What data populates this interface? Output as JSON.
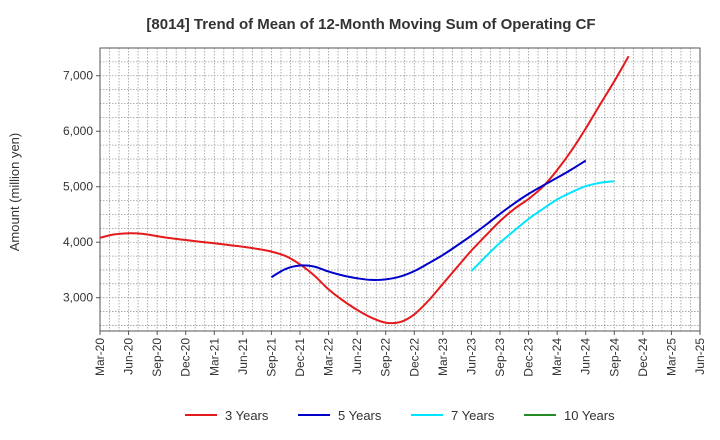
{
  "chart_data": {
    "type": "line",
    "title": "[8014]  Trend of Mean of 12-Month Moving Sum of Operating CF",
    "xlabel": "",
    "ylabel": "Amount (million yen)",
    "ylim": [
      2400,
      7500
    ],
    "yticks": [
      3000,
      4000,
      5000,
      6000,
      7000
    ],
    "ytick_labels": [
      "3,000",
      "4,000",
      "5,000",
      "6,000",
      "7,000"
    ],
    "xtick_labels": [
      "Mar-20",
      "Jun-20",
      "Sep-20",
      "Dec-20",
      "Mar-21",
      "Jun-21",
      "Sep-21",
      "Dec-21",
      "Mar-22",
      "Jun-22",
      "Sep-22",
      "Dec-22",
      "Mar-23",
      "Jun-23",
      "Sep-23",
      "Dec-23",
      "Mar-24",
      "Jun-24",
      "Sep-24",
      "Dec-24",
      "Mar-25",
      "Jun-25"
    ],
    "grid": true,
    "legend_position": "bottom",
    "series": [
      {
        "name": "3 Years",
        "color": "#e41a1c",
        "start_index": 0,
        "values": [
          4080,
          4140,
          4160,
          4150,
          4110,
          4070,
          4040,
          4010,
          3980,
          3950,
          3920,
          3880,
          3830,
          3750,
          3600,
          3400,
          3150,
          2950,
          2780,
          2640,
          2550,
          2560,
          2700,
          2950,
          3250,
          3550,
          3850,
          4120,
          4380,
          4600,
          4780,
          5000,
          5300,
          5650,
          6050,
          6480,
          6900,
          7350
        ]
      },
      {
        "name": "5 Years",
        "color": "#0000cc",
        "start_index": 12,
        "values": [
          3370,
          3520,
          3580,
          3560,
          3470,
          3400,
          3350,
          3320,
          3330,
          3380,
          3480,
          3620,
          3770,
          3940,
          4120,
          4310,
          4510,
          4700,
          4870,
          5020,
          5160,
          5310,
          5470
        ]
      },
      {
        "name": "7 Years",
        "color": "#00e5ff",
        "start_index": 26,
        "values": [
          3480,
          3740,
          3990,
          4210,
          4420,
          4600,
          4770,
          4900,
          5010,
          5070,
          5100
        ]
      },
      {
        "name": "10 Years",
        "color": "#228b22",
        "start_index": 0,
        "values": []
      }
    ]
  }
}
